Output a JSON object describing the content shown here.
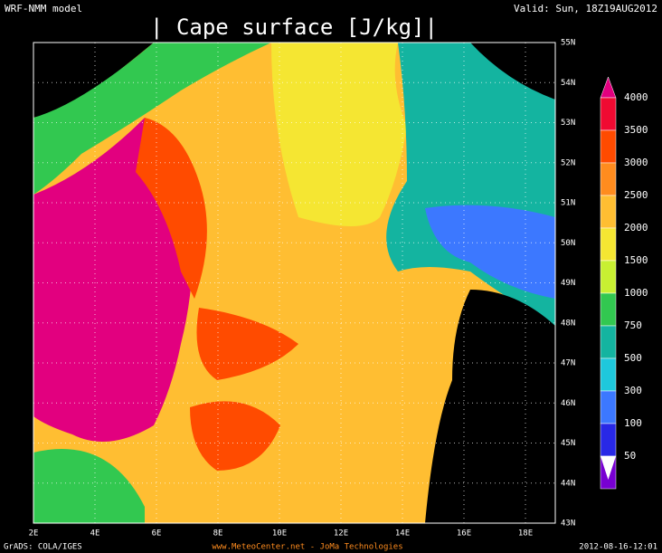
{
  "header": {
    "model": "WRF-NMM model",
    "title": "| Cape surface [J/kg]|",
    "valid": "Valid: Sun, 18Z19AUG2012"
  },
  "map": {
    "lon_labels": [
      "2E",
      "4E",
      "6E",
      "8E",
      "10E",
      "12E",
      "14E",
      "16E",
      "18E"
    ],
    "lat_labels": [
      "43N",
      "44N",
      "45N",
      "46N",
      "47N",
      "48N",
      "49N",
      "50N",
      "51N",
      "52N",
      "53N",
      "54N",
      "55N"
    ]
  },
  "colorbar": {
    "labels": [
      "4000",
      "3500",
      "3000",
      "2500",
      "2000",
      "1500",
      "1000",
      "750",
      "500",
      "300",
      "100",
      "50"
    ],
    "colors": [
      "#e2007f",
      "#f00a32",
      "#ff4b00",
      "#ff8c1e",
      "#ffbe32",
      "#f5e632",
      "#c8f032",
      "#32c850",
      "#14b4a0",
      "#1ec8dc",
      "#3c78ff",
      "#2828e6",
      "#7800d2"
    ]
  },
  "footer": {
    "left": "GrADS: COLA/IGES",
    "center": "www.MeteoCenter.net  -  JoMa Technologies",
    "right": "2012-08-16-12:01"
  }
}
